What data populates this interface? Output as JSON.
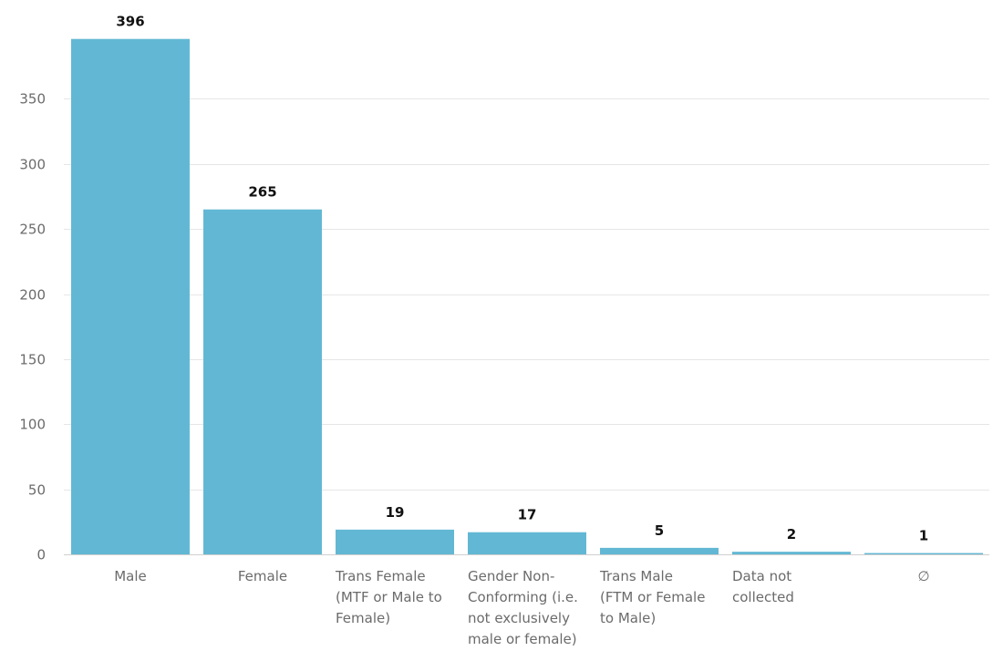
{
  "chart_data": {
    "type": "bar",
    "categories": [
      [
        "Male"
      ],
      [
        "Female"
      ],
      [
        "Trans Female",
        "(MTF or Male to",
        "Female)"
      ],
      [
        "Gender Non-",
        "Conforming (i.e.",
        "not exclusively",
        "male or female)"
      ],
      [
        "Trans Male",
        "(FTM or Female",
        "to Male)"
      ],
      [
        "Data not",
        "collected"
      ],
      [
        "∅"
      ]
    ],
    "values": [
      396,
      265,
      19,
      17,
      5,
      2,
      1
    ],
    "ylim": [
      0,
      400
    ],
    "yticks": [
      0,
      50,
      100,
      150,
      200,
      250,
      300,
      350
    ],
    "grid": true,
    "bar_color": "#62b8d4"
  }
}
